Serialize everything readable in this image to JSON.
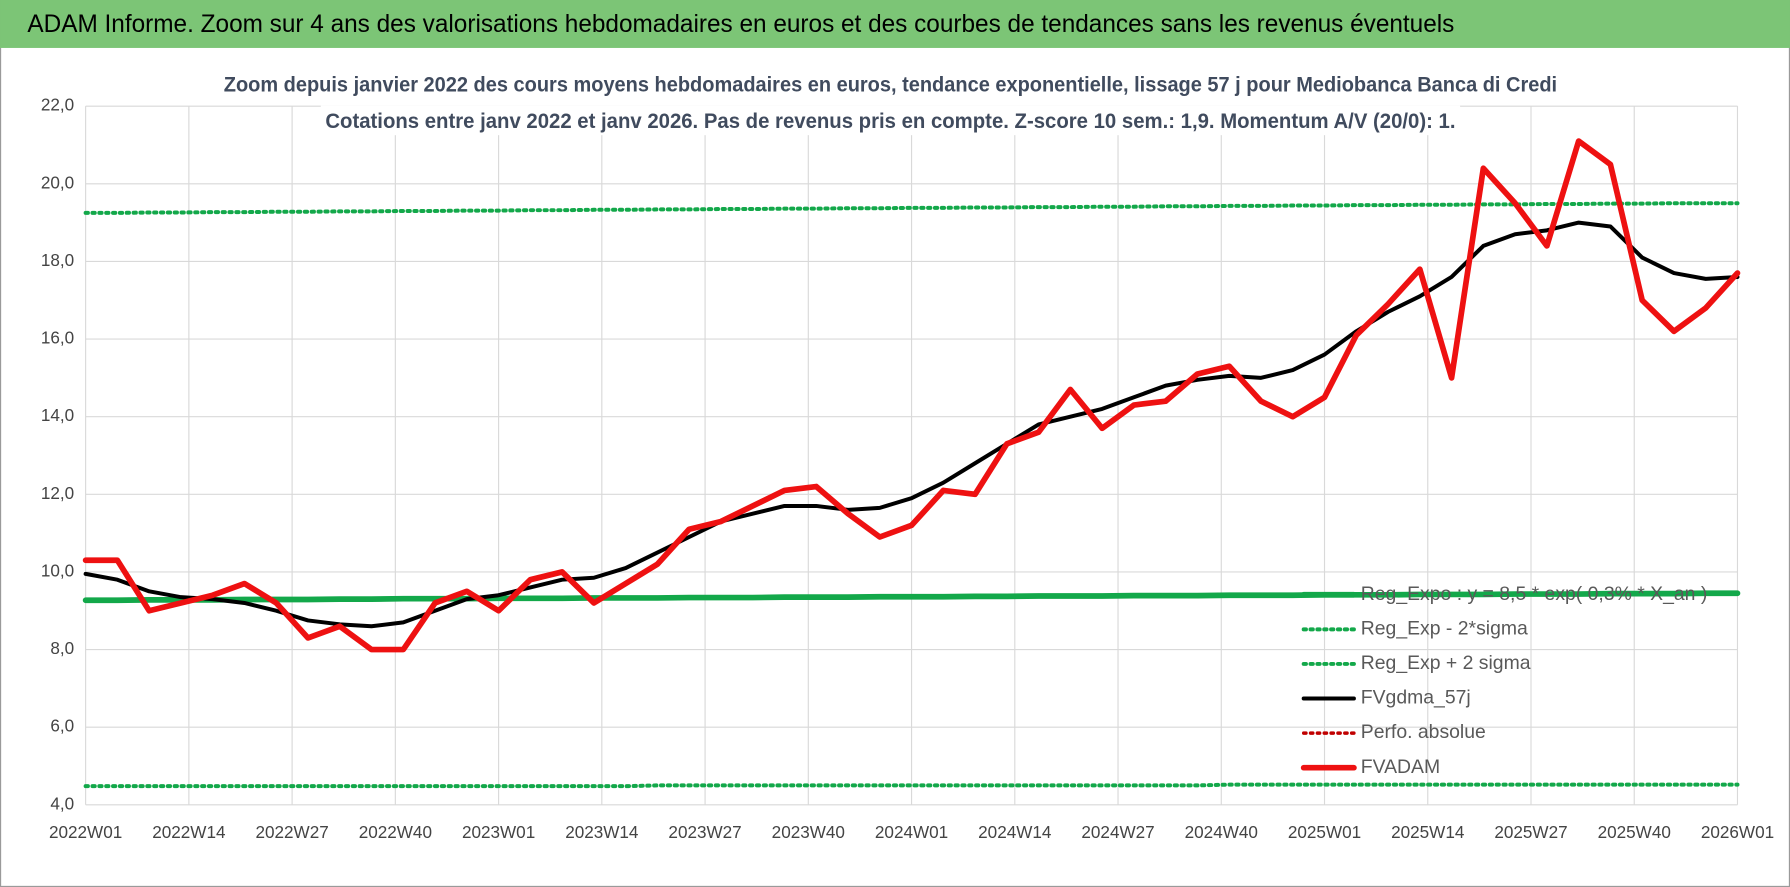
{
  "header": {
    "title": "ADAM Informe. Zoom sur 4 ans des valorisations hebdomadaires en euros et des courbes de tendances sans les revenus éventuels"
  },
  "chart_data": {
    "type": "line",
    "title": "Zoom depuis janvier 2022 des cours moyens hebdomadaires en euros, tendance exponentielle, lissage 57 j pour Mediobanca Banca di Credi",
    "subtitle": "Cotations entre janv 2022 et janv 2026. Pas de revenus pris en compte. Z-score 10 sem.: 1,9. Momentum A/V (20/0): 1.",
    "x": [
      0,
      4,
      8,
      12,
      16,
      20,
      24,
      28,
      32,
      36,
      40,
      44,
      48,
      52,
      56,
      60,
      64,
      68,
      72,
      76,
      80,
      84,
      88,
      92,
      96,
      100,
      104,
      108,
      112,
      116,
      120,
      124,
      128,
      132,
      136,
      140,
      144,
      148,
      152,
      156,
      160,
      164,
      168,
      172,
      176,
      180,
      184,
      188,
      192,
      196,
      200,
      204,
      208
    ],
    "xlim": [
      0,
      208
    ],
    "xticks": [
      {
        "value": 0,
        "label": "2022W01"
      },
      {
        "value": 13,
        "label": "2022W14"
      },
      {
        "value": 26,
        "label": "2022W27"
      },
      {
        "value": 39,
        "label": "2022W40"
      },
      {
        "value": 52,
        "label": "2023W01"
      },
      {
        "value": 65,
        "label": "2023W14"
      },
      {
        "value": 78,
        "label": "2023W27"
      },
      {
        "value": 91,
        "label": "2023W40"
      },
      {
        "value": 104,
        "label": "2024W01"
      },
      {
        "value": 117,
        "label": "2024W14"
      },
      {
        "value": 130,
        "label": "2024W27"
      },
      {
        "value": 143,
        "label": "2024W40"
      },
      {
        "value": 156,
        "label": "2025W01"
      },
      {
        "value": 169,
        "label": "2025W14"
      },
      {
        "value": 182,
        "label": "2025W27"
      },
      {
        "value": 195,
        "label": "2025W40"
      },
      {
        "value": 208,
        "label": "2026W01"
      }
    ],
    "ylim": [
      4,
      22
    ],
    "yticks": [
      {
        "value": 4,
        "label": "4,0"
      },
      {
        "value": 6,
        "label": "6,0"
      },
      {
        "value": 8,
        "label": "8,0"
      },
      {
        "value": 10,
        "label": "10,0"
      },
      {
        "value": 12,
        "label": "12,0"
      },
      {
        "value": 14,
        "label": "14,0"
      },
      {
        "value": 16,
        "label": "16,0"
      },
      {
        "value": 18,
        "label": "18,0"
      },
      {
        "value": 20,
        "label": "20,0"
      },
      {
        "value": 22,
        "label": "22,0"
      }
    ],
    "grid": true,
    "legend": "right",
    "series": [
      {
        "name": "Reg_Expo : y = 8,5 * exp( 0,3% * X_an )",
        "color": "#13a84a",
        "style": "solid",
        "width": 5,
        "values": [
          9.27,
          9.27,
          9.28,
          9.28,
          9.28,
          9.29,
          9.29,
          9.29,
          9.3,
          9.3,
          9.31,
          9.31,
          9.31,
          9.32,
          9.32,
          9.32,
          9.33,
          9.33,
          9.33,
          9.34,
          9.34,
          9.34,
          9.35,
          9.35,
          9.35,
          9.36,
          9.36,
          9.36,
          9.37,
          9.37,
          9.38,
          9.38,
          9.38,
          9.39,
          9.39,
          9.39,
          9.4,
          9.4,
          9.4,
          9.41,
          9.41,
          9.41,
          9.42,
          9.42,
          9.42,
          9.43,
          9.43,
          9.43,
          9.44,
          9.44,
          9.44,
          9.45,
          9.45
        ]
      },
      {
        "name": "Reg_Exp - 2*sigma",
        "color": "#13a84a",
        "style": "dotted",
        "width": 3.5,
        "values": [
          4.48,
          4.48,
          4.48,
          4.48,
          4.48,
          4.48,
          4.48,
          4.48,
          4.48,
          4.48,
          4.48,
          4.48,
          4.48,
          4.48,
          4.48,
          4.48,
          4.48,
          4.48,
          4.5,
          4.5,
          4.5,
          4.5,
          4.5,
          4.5,
          4.5,
          4.5,
          4.5,
          4.5,
          4.5,
          4.5,
          4.5,
          4.5,
          4.5,
          4.5,
          4.5,
          4.5,
          4.52,
          4.52,
          4.52,
          4.52,
          4.52,
          4.52,
          4.52,
          4.52,
          4.52,
          4.52,
          4.52,
          4.52,
          4.52,
          4.52,
          4.52,
          4.52,
          4.52
        ]
      },
      {
        "name": "Reg_Exp + 2 sigma",
        "color": "#13a84a",
        "style": "dotted",
        "width": 3.5,
        "values": [
          19.25,
          19.25,
          19.26,
          19.26,
          19.27,
          19.27,
          19.28,
          19.28,
          19.29,
          19.29,
          19.3,
          19.3,
          19.31,
          19.31,
          19.32,
          19.32,
          19.33,
          19.33,
          19.34,
          19.34,
          19.35,
          19.35,
          19.36,
          19.36,
          19.37,
          19.37,
          19.38,
          19.38,
          19.39,
          19.39,
          19.4,
          19.4,
          19.41,
          19.41,
          19.42,
          19.42,
          19.43,
          19.43,
          19.44,
          19.44,
          19.45,
          19.45,
          19.46,
          19.46,
          19.47,
          19.47,
          19.48,
          19.48,
          19.49,
          19.49,
          19.5,
          19.5,
          19.5
        ]
      },
      {
        "name": "FVgdma_57j",
        "color": "#000000",
        "style": "solid",
        "width": 3.5,
        "values": [
          9.95,
          9.8,
          9.5,
          9.35,
          9.3,
          9.2,
          9.0,
          8.75,
          8.65,
          8.6,
          8.7,
          9.0,
          9.3,
          9.4,
          9.6,
          9.8,
          9.85,
          10.1,
          10.5,
          10.9,
          11.3,
          11.5,
          11.7,
          11.7,
          11.6,
          11.65,
          11.9,
          12.3,
          12.8,
          13.3,
          13.8,
          14.0,
          14.2,
          14.5,
          14.8,
          14.95,
          15.05,
          15.0,
          15.2,
          15.6,
          16.2,
          16.7,
          17.1,
          17.6,
          18.4,
          18.7,
          18.8,
          19.0,
          18.9,
          18.1,
          17.7,
          17.55,
          17.6
        ]
      },
      {
        "name": "Perfo. absolue",
        "color": "#c00000",
        "style": "dotted",
        "width": 3,
        "values": [
          null,
          null,
          null,
          null,
          null,
          null,
          null,
          null,
          null,
          null,
          null,
          null,
          null,
          null,
          null,
          null,
          null,
          null,
          null,
          null,
          null,
          null,
          null,
          null,
          null,
          null,
          null,
          null,
          null,
          null,
          null,
          null,
          null,
          null,
          null,
          null,
          null,
          null,
          null,
          null,
          null,
          null,
          null,
          null,
          null,
          null,
          null,
          null,
          null,
          null,
          null,
          null,
          null
        ]
      },
      {
        "name": "FVADAM",
        "color": "#ee1111",
        "style": "solid",
        "width": 5,
        "values": [
          10.3,
          10.3,
          9.0,
          9.2,
          9.4,
          9.7,
          9.2,
          8.3,
          8.6,
          8.0,
          8.0,
          9.2,
          9.5,
          9.0,
          9.8,
          10.0,
          9.2,
          9.7,
          10.2,
          11.1,
          11.3,
          11.7,
          12.1,
          12.2,
          11.5,
          10.9,
          11.2,
          12.1,
          12.0,
          13.3,
          13.6,
          14.7,
          13.7,
          14.3,
          14.4,
          15.1,
          15.3,
          14.4,
          14.0,
          14.5,
          16.1,
          16.9,
          17.8,
          15.0,
          20.4,
          19.5,
          18.4,
          21.1,
          20.5,
          17.0,
          16.2,
          16.8,
          17.7
        ]
      }
    ]
  }
}
